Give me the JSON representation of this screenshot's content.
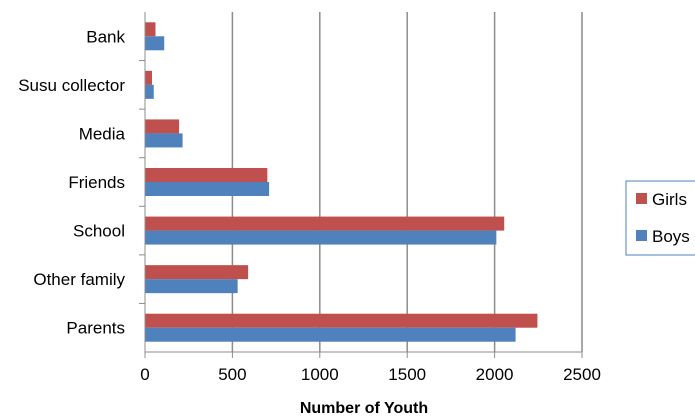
{
  "chart_data": {
    "type": "bar",
    "orientation": "horizontal",
    "title": "",
    "xlabel": "Number of Youth",
    "ylabel": "",
    "xlim": [
      0,
      2500
    ],
    "x_ticks": [
      0,
      500,
      1000,
      1500,
      2000,
      2500
    ],
    "grid": "vertical-major",
    "legend_position": "right",
    "categories": [
      "Bank",
      "Susu collector",
      "Media",
      "Friends",
      "School",
      "Other family",
      "Parents"
    ],
    "series": [
      {
        "name": "Girls",
        "color": "#c0504d",
        "values": [
          60,
          40,
          195,
          700,
          2055,
          590,
          2245
        ]
      },
      {
        "name": "Boys",
        "color": "#4f81bd",
        "values": [
          110,
          50,
          215,
          710,
          2010,
          530,
          2120
        ]
      }
    ]
  }
}
